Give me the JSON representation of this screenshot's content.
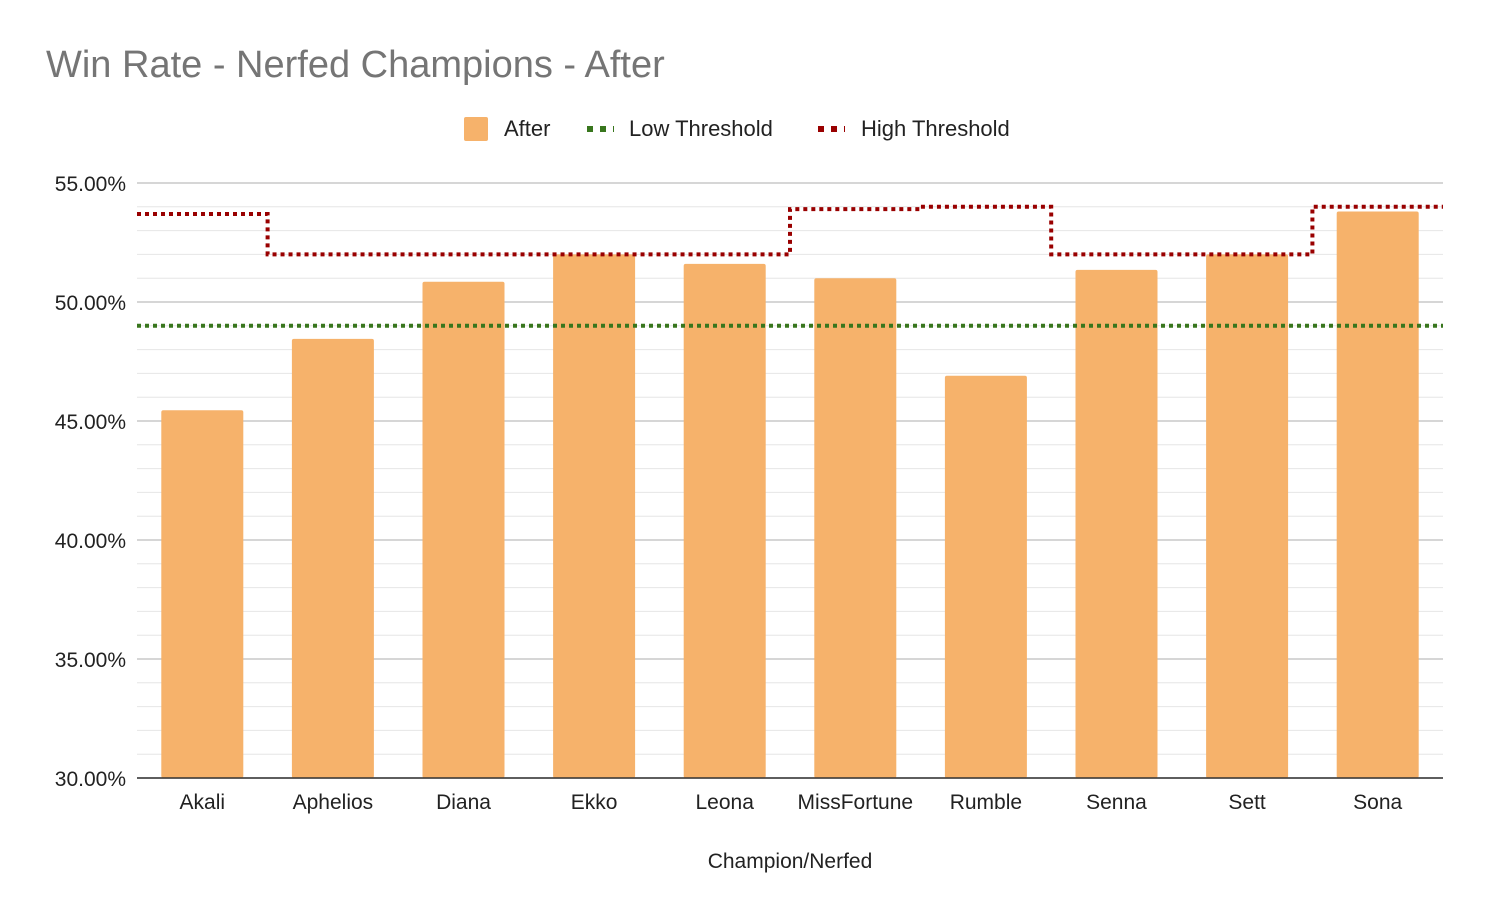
{
  "chart_data": {
    "type": "bar",
    "title": "Win Rate - Nerfed Champions - After",
    "xlabel": "Champion/Nerfed",
    "ylabel": "",
    "ylim": [
      0.3,
      0.55
    ],
    "y_major_step": 0.05,
    "y_minor_step": 0.01,
    "y_tick_labels": [
      "30.00%",
      "35.00%",
      "40.00%",
      "45.00%",
      "50.00%",
      "55.00%"
    ],
    "grid": true,
    "legend_position": "top-center",
    "categories": [
      "Akali",
      "Aphelios",
      "Diana",
      "Ekko",
      "Leona",
      "MissFortune",
      "Rumble",
      "Senna",
      "Sett",
      "Sona"
    ],
    "series": [
      {
        "name": "After",
        "type": "bar",
        "color": "#f6b26b",
        "values": [
          0.4545,
          0.4845,
          0.5085,
          0.52,
          0.516,
          0.51,
          0.469,
          0.5135,
          0.52,
          0.538
        ]
      },
      {
        "name": "Low Threshold",
        "type": "step-line-dotted",
        "color": "#38761d",
        "values": [
          0.49,
          0.49,
          0.49,
          0.49,
          0.49,
          0.49,
          0.49,
          0.49,
          0.49,
          0.49
        ]
      },
      {
        "name": "High Threshold",
        "type": "step-line-dotted",
        "color": "#990000",
        "values": [
          0.537,
          0.52,
          0.52,
          0.52,
          0.52,
          0.539,
          0.54,
          0.52,
          0.52,
          0.54
        ]
      }
    ]
  }
}
